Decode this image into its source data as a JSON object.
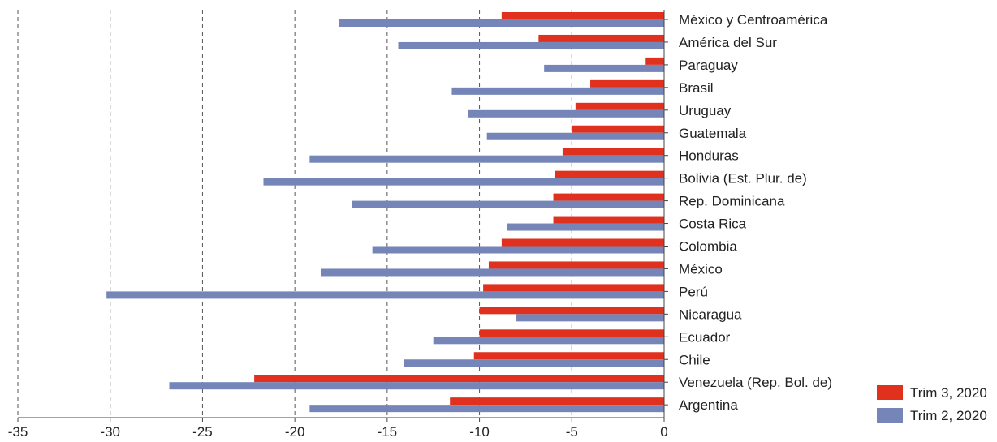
{
  "chart_data": {
    "type": "bar",
    "orientation": "horizontal",
    "categories": [
      "México y Centroamérica",
      "América del Sur",
      "Paraguay",
      "Brasil",
      "Uruguay",
      "Guatemala",
      "Honduras",
      "Bolivia (Est. Plur. de)",
      "Rep. Dominicana",
      "Costa Rica",
      "Colombia",
      "México",
      "Perú",
      "Nicaragua",
      "Ecuador",
      "Chile",
      "Venezuela (Rep. Bol. de)",
      "Argentina"
    ],
    "series": [
      {
        "name": "Trim 3, 2020",
        "color": "#e0301e",
        "values": [
          -8.8,
          -6.8,
          -1.0,
          -4.0,
          -4.8,
          -5.0,
          -5.5,
          -5.9,
          -6.0,
          -6.0,
          -8.8,
          -9.5,
          -9.8,
          -10.0,
          -10.0,
          -10.3,
          -22.2,
          -11.6
        ]
      },
      {
        "name": "Trim 2, 2020",
        "color": "#7585b8",
        "values": [
          -17.6,
          -14.4,
          -6.5,
          -11.5,
          -10.6,
          -9.6,
          -19.2,
          -21.7,
          -16.9,
          -8.5,
          -15.8,
          -18.6,
          -30.2,
          -8.0,
          -12.5,
          -14.1,
          -26.8,
          -19.2
        ]
      }
    ],
    "xlim": [
      -35,
      0
    ],
    "xticks": [
      -35,
      -30,
      -25,
      -20,
      -15,
      -10,
      -5,
      0
    ],
    "grid": "vertical-dashed",
    "legend_position": "bottom-right",
    "title": "",
    "xlabel": "",
    "ylabel": ""
  }
}
